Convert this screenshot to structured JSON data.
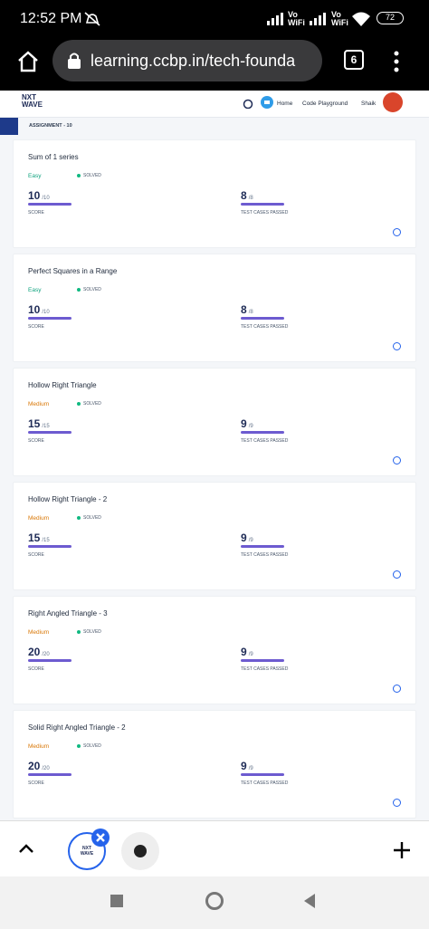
{
  "status_bar": {
    "time": "12:52 PM",
    "network_1": "Vo\nWiFi",
    "network_2": "Vo\nWiFi",
    "battery": "72"
  },
  "browser": {
    "url": "learning.ccbp.in/tech-founda",
    "tab_count": "6"
  },
  "header": {
    "logo_line_1": "NXT",
    "logo_line_2": "WAVE",
    "nav": [
      "Home",
      "Code Playground",
      "Shaik"
    ]
  },
  "breadcrumb": "ASSIGNMENT - 10",
  "cards": [
    {
      "title": "Sum of 1 series",
      "difficulty": "Easy",
      "status": "SOLVED",
      "score": "10",
      "score_total": "/10",
      "score_label": "SCORE",
      "tests": "8",
      "tests_total": "/8",
      "tests_label": "TEST CASES PASSED"
    },
    {
      "title": "Perfect Squares in a Range",
      "difficulty": "Easy",
      "status": "SOLVED",
      "score": "10",
      "score_total": "/10",
      "score_label": "SCORE",
      "tests": "8",
      "tests_total": "/8",
      "tests_label": "TEST CASES PASSED"
    },
    {
      "title": "Hollow Right Triangle",
      "difficulty": "Medium",
      "status": "SOLVED",
      "score": "15",
      "score_total": "/15",
      "score_label": "SCORE",
      "tests": "9",
      "tests_total": "/9",
      "tests_label": "TEST CASES PASSED"
    },
    {
      "title": "Hollow Right Triangle - 2",
      "difficulty": "Medium",
      "status": "SOLVED",
      "score": "15",
      "score_total": "/15",
      "score_label": "SCORE",
      "tests": "9",
      "tests_total": "/9",
      "tests_label": "TEST CASES PASSED"
    },
    {
      "title": "Right Angled Triangle - 3",
      "difficulty": "Medium",
      "status": "SOLVED",
      "score": "20",
      "score_total": "/20",
      "score_label": "SCORE",
      "tests": "9",
      "tests_total": "/9",
      "tests_label": "TEST CASES PASSED"
    },
    {
      "title": "Solid Right Angled Triangle - 2",
      "difficulty": "Medium",
      "status": "SOLVED",
      "score": "20",
      "score_total": "/20",
      "score_label": "SCORE",
      "tests": "9",
      "tests_total": "/9",
      "tests_label": "TEST CASES PASSED"
    }
  ],
  "bottom_bar": {
    "tab_logo": "NXT\nWAVE"
  }
}
